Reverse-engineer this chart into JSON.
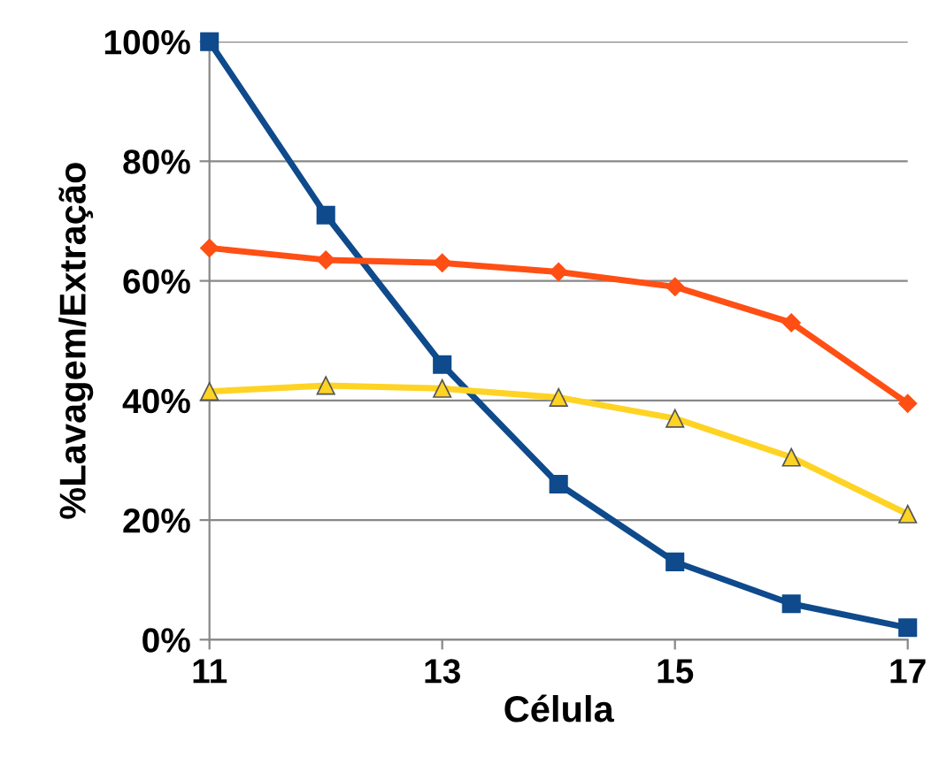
{
  "chart_data": {
    "type": "line",
    "xlabel": "Célula",
    "ylabel": "%Lavagem/Extração",
    "x": [
      11,
      12,
      13,
      14,
      15,
      16,
      17
    ],
    "series": [
      {
        "color": "#0e4a8c",
        "marker": "square",
        "values": [
          100,
          71,
          46,
          26,
          13,
          6,
          2
        ]
      },
      {
        "color": "#ff4f14",
        "marker": "diamond",
        "values": [
          65.5,
          63.5,
          63,
          61.5,
          59,
          53,
          39.5
        ]
      },
      {
        "color": "#ffd324",
        "marker": "triangle",
        "values": [
          41.5,
          42.5,
          42,
          40.5,
          37,
          30.5,
          21
        ]
      }
    ],
    "xlim": [
      11,
      17
    ],
    "xticks": [
      11,
      13,
      15,
      17
    ],
    "ylim": [
      0,
      100
    ],
    "yticks": [
      {
        "value": 0,
        "label": "0%"
      },
      {
        "value": 20,
        "label": "20%"
      },
      {
        "value": 40,
        "label": "40%"
      },
      {
        "value": 60,
        "label": "60%"
      },
      {
        "value": 80,
        "label": "80%"
      },
      {
        "value": 100,
        "label": "100%"
      }
    ],
    "grid": "y",
    "line_style": "solid"
  }
}
